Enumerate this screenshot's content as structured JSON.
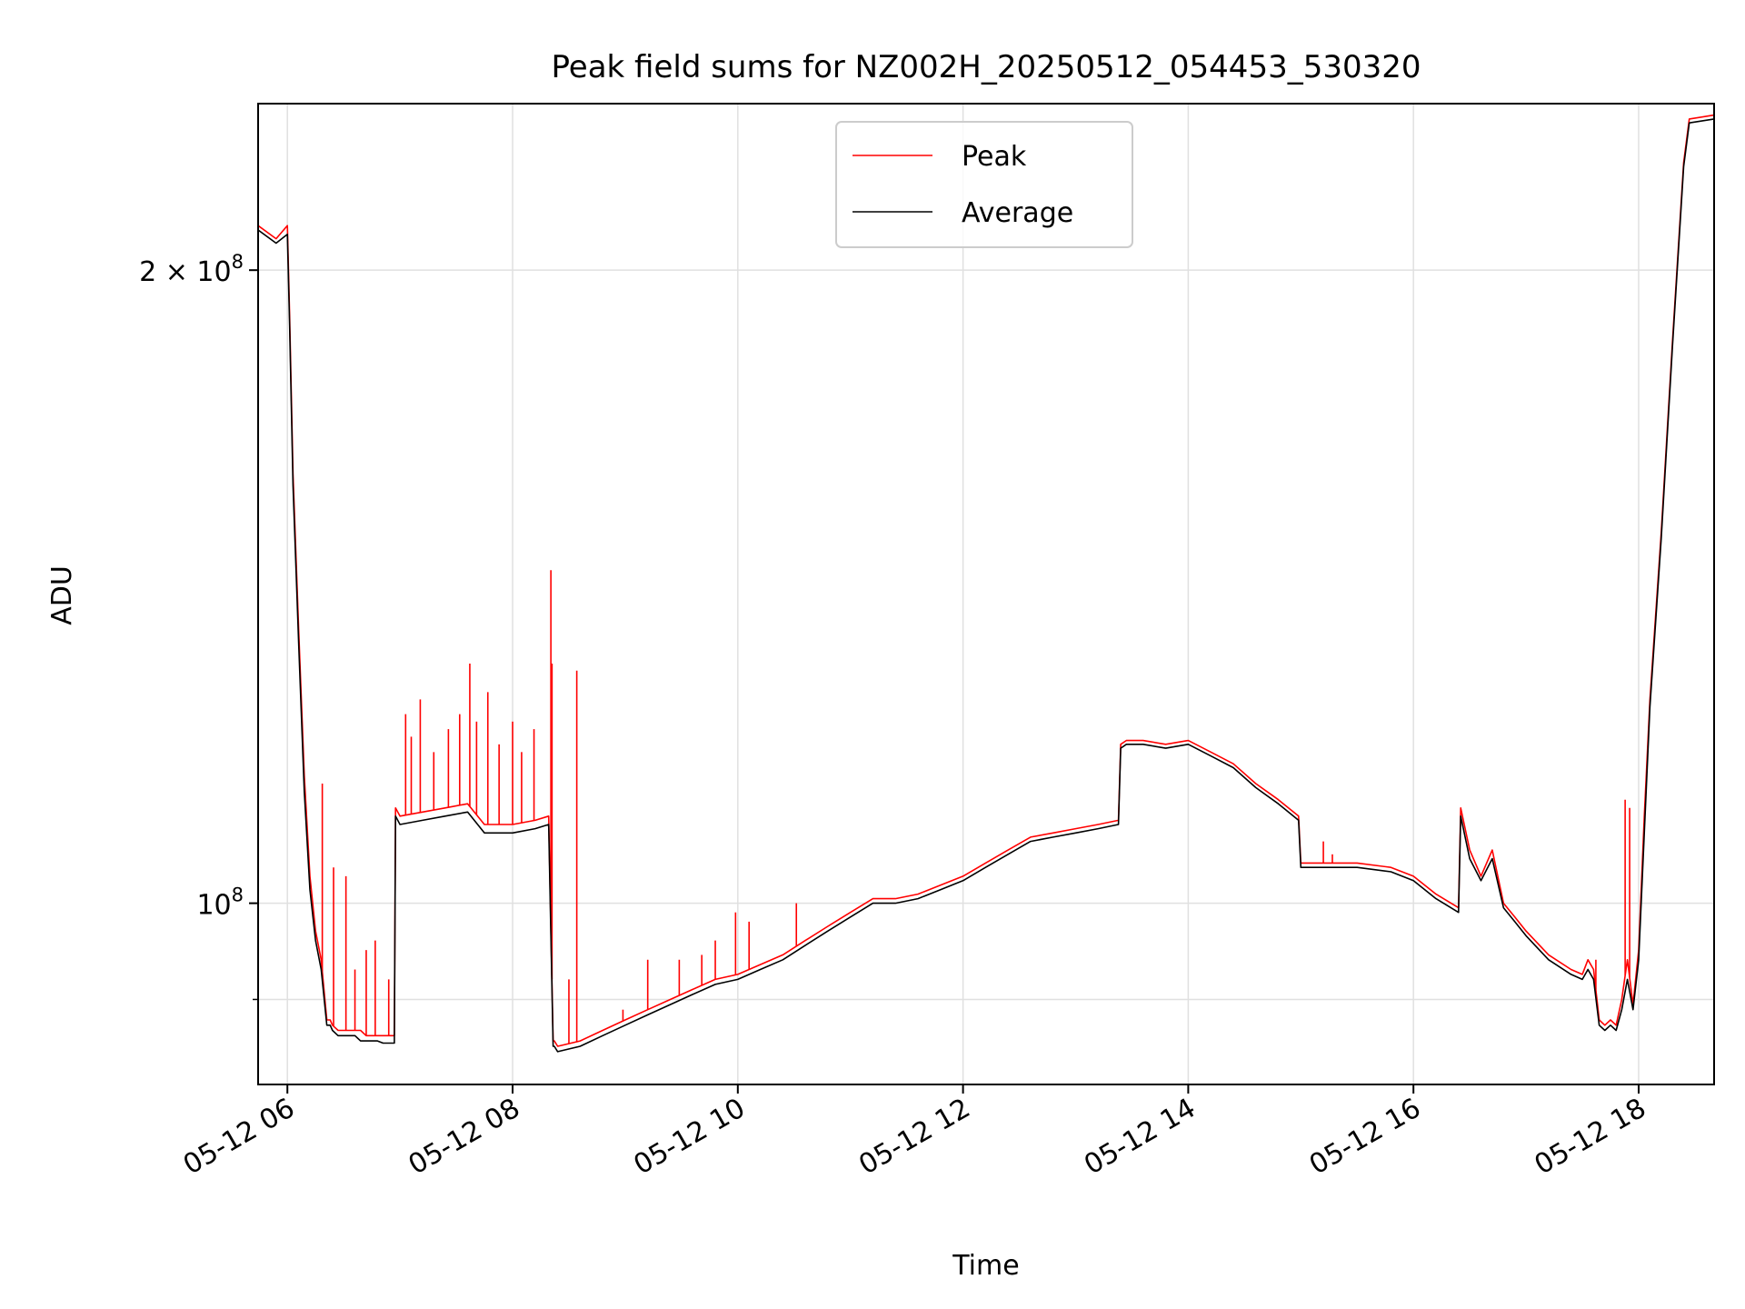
{
  "chart_data": {
    "type": "line",
    "title": "Peak field sums for NZ002H_20250512_054453_530320",
    "xlabel": "Time",
    "ylabel": "ADU",
    "x_unit": "hours on 2025-05-12",
    "xlim": [
      5.74,
      18.67
    ],
    "ylim": [
      82000000,
      240000000
    ],
    "y_scale": "log",
    "grid": true,
    "legend_position": "upper center",
    "x_ticks": [
      {
        "value": 6,
        "label": "05-12 06"
      },
      {
        "value": 8,
        "label": "05-12 08"
      },
      {
        "value": 10,
        "label": "05-12 10"
      },
      {
        "value": 12,
        "label": "05-12 12"
      },
      {
        "value": 14,
        "label": "05-12 14"
      },
      {
        "value": 16,
        "label": "05-12 16"
      },
      {
        "value": 18,
        "label": "05-12 18"
      }
    ],
    "y_ticks": [
      {
        "value": 200000000,
        "label": "2 × 10",
        "exp": "8"
      },
      {
        "value": 100000000,
        "label": "10",
        "exp": "8"
      }
    ],
    "y_minor_ticks": [
      90000000
    ],
    "series": [
      {
        "name": "Peak",
        "color": "#ff0000",
        "x": [
          5.74,
          5.9,
          6.0,
          6.02,
          6.05,
          6.1,
          6.15,
          6.2,
          6.25,
          6.3,
          6.35,
          6.38,
          6.4,
          6.45,
          6.5,
          6.55,
          6.6,
          6.65,
          6.7,
          6.75,
          6.8,
          6.85,
          6.95,
          6.96,
          7.0,
          7.2,
          7.4,
          7.6,
          7.75,
          7.8,
          8.0,
          8.2,
          8.32,
          8.36,
          8.37,
          8.4,
          8.6,
          8.8,
          9.0,
          9.2,
          9.4,
          9.6,
          9.8,
          10.0,
          10.2,
          10.4,
          10.6,
          10.8,
          11.0,
          11.2,
          11.4,
          11.6,
          11.8,
          12.0,
          12.2,
          12.4,
          12.6,
          12.8,
          13.0,
          13.2,
          13.38,
          13.4,
          13.45,
          13.6,
          13.8,
          14.0,
          14.2,
          14.4,
          14.6,
          14.8,
          14.98,
          15.0,
          15.2,
          15.5,
          15.8,
          16.0,
          16.2,
          16.4,
          16.42,
          16.5,
          16.6,
          16.7,
          16.8,
          16.9,
          17.0,
          17.2,
          17.4,
          17.5,
          17.55,
          17.6,
          17.65,
          17.7,
          17.75,
          17.8,
          17.85,
          17.9,
          17.95,
          18.0,
          18.05,
          18.1,
          18.2,
          18.3,
          18.4,
          18.45,
          18.67
        ],
        "y": [
          210000000,
          207000000,
          210000000,
          190000000,
          160000000,
          135000000,
          115000000,
          103000000,
          97000000,
          94000000,
          88000000,
          88000000,
          87500000,
          87000000,
          87000000,
          87000000,
          87000000,
          87000000,
          86500000,
          86500000,
          86500000,
          86500000,
          86500000,
          111000000,
          110000000,
          110500000,
          111000000,
          111500000,
          109000000,
          109000000,
          109000000,
          109500000,
          110000000,
          86000000,
          86000000,
          85500000,
          86000000,
          87000000,
          88000000,
          89000000,
          90000000,
          91000000,
          92000000,
          92500000,
          93500000,
          94500000,
          96000000,
          97500000,
          99000000,
          100500000,
          100500000,
          101000000,
          102000000,
          103000000,
          104500000,
          106000000,
          107500000,
          108000000,
          108500000,
          109000000,
          109500000,
          119000000,
          119500000,
          119500000,
          119000000,
          119500000,
          118000000,
          116500000,
          114000000,
          112000000,
          110000000,
          104500000,
          104500000,
          104500000,
          104000000,
          103000000,
          101000000,
          99500000,
          111000000,
          106000000,
          103000000,
          106000000,
          100000000,
          98500000,
          97000000,
          94500000,
          93000000,
          92500000,
          94000000,
          93000000,
          88000000,
          87500000,
          88000000,
          87500000,
          90000000,
          94000000,
          89500000,
          95000000,
          110000000,
          125000000,
          150000000,
          185000000,
          225000000,
          236000000,
          237000000
        ],
        "spikes": [
          {
            "x": 6.31,
            "y": 114000000
          },
          {
            "x": 6.41,
            "y": 104000000
          },
          {
            "x": 6.52,
            "y": 103000000
          },
          {
            "x": 6.6,
            "y": 93000000
          },
          {
            "x": 6.7,
            "y": 95000000
          },
          {
            "x": 6.78,
            "y": 96000000
          },
          {
            "x": 6.9,
            "y": 92000000
          },
          {
            "x": 7.05,
            "y": 123000000
          },
          {
            "x": 7.1,
            "y": 120000000
          },
          {
            "x": 7.18,
            "y": 125000000
          },
          {
            "x": 7.3,
            "y": 118000000
          },
          {
            "x": 7.43,
            "y": 121000000
          },
          {
            "x": 7.53,
            "y": 123000000
          },
          {
            "x": 7.62,
            "y": 130000000
          },
          {
            "x": 7.68,
            "y": 122000000
          },
          {
            "x": 7.78,
            "y": 126000000
          },
          {
            "x": 7.88,
            "y": 119000000
          },
          {
            "x": 8.0,
            "y": 122000000
          },
          {
            "x": 8.08,
            "y": 118000000
          },
          {
            "x": 8.19,
            "y": 121000000
          },
          {
            "x": 8.34,
            "y": 144000000
          },
          {
            "x": 8.35,
            "y": 130000000
          },
          {
            "x": 8.5,
            "y": 92000000
          },
          {
            "x": 8.57,
            "y": 129000000
          },
          {
            "x": 8.98,
            "y": 89000000
          },
          {
            "x": 9.2,
            "y": 94000000
          },
          {
            "x": 9.48,
            "y": 94000000
          },
          {
            "x": 9.68,
            "y": 94500000
          },
          {
            "x": 9.8,
            "y": 96000000
          },
          {
            "x": 9.98,
            "y": 99000000
          },
          {
            "x": 10.1,
            "y": 98000000
          },
          {
            "x": 10.52,
            "y": 100000000
          },
          {
            "x": 13.4,
            "y": 119000000
          },
          {
            "x": 15.2,
            "y": 107000000
          },
          {
            "x": 15.28,
            "y": 105500000
          },
          {
            "x": 17.62,
            "y": 94000000
          },
          {
            "x": 17.88,
            "y": 112000000
          },
          {
            "x": 17.92,
            "y": 111000000
          }
        ]
      },
      {
        "name": "Average",
        "color": "#000000",
        "x": [
          5.74,
          5.9,
          6.0,
          6.02,
          6.05,
          6.1,
          6.15,
          6.2,
          6.25,
          6.3,
          6.35,
          6.38,
          6.4,
          6.45,
          6.5,
          6.55,
          6.6,
          6.65,
          6.7,
          6.75,
          6.8,
          6.85,
          6.95,
          6.96,
          7.0,
          7.2,
          7.4,
          7.6,
          7.75,
          7.8,
          8.0,
          8.2,
          8.32,
          8.36,
          8.37,
          8.4,
          8.6,
          8.8,
          9.0,
          9.2,
          9.4,
          9.6,
          9.8,
          10.0,
          10.2,
          10.4,
          10.6,
          10.8,
          11.0,
          11.2,
          11.4,
          11.6,
          11.8,
          12.0,
          12.2,
          12.4,
          12.6,
          12.8,
          13.0,
          13.2,
          13.38,
          13.4,
          13.45,
          13.6,
          13.8,
          14.0,
          14.2,
          14.4,
          14.6,
          14.8,
          14.98,
          15.0,
          15.2,
          15.5,
          15.8,
          16.0,
          16.2,
          16.4,
          16.42,
          16.5,
          16.6,
          16.7,
          16.8,
          16.9,
          17.0,
          17.2,
          17.4,
          17.5,
          17.55,
          17.6,
          17.65,
          17.7,
          17.75,
          17.8,
          17.85,
          17.9,
          17.95,
          18.0,
          18.05,
          18.1,
          18.2,
          18.3,
          18.4,
          18.45,
          18.67
        ],
        "y": [
          209000000,
          206000000,
          208000000,
          188000000,
          158000000,
          133000000,
          113000000,
          101500000,
          96000000,
          93000000,
          87500000,
          87500000,
          87000000,
          86500000,
          86500000,
          86500000,
          86500000,
          86000000,
          86000000,
          86000000,
          86000000,
          85800000,
          85800000,
          110000000,
          109000000,
          109500000,
          110000000,
          110500000,
          108000000,
          108000000,
          108000000,
          108500000,
          109000000,
          85500000,
          85500000,
          85000000,
          85500000,
          86500000,
          87500000,
          88500000,
          89500000,
          90500000,
          91500000,
          92000000,
          93000000,
          94000000,
          95500000,
          97000000,
          98500000,
          100000000,
          100000000,
          100500000,
          101500000,
          102500000,
          104000000,
          105500000,
          107000000,
          107500000,
          108000000,
          108500000,
          109000000,
          118500000,
          119000000,
          119000000,
          118500000,
          119000000,
          117500000,
          116000000,
          113500000,
          111500000,
          109500000,
          104000000,
          104000000,
          104000000,
          103500000,
          102500000,
          100500000,
          99000000,
          110000000,
          105000000,
          102500000,
          105000000,
          99500000,
          98000000,
          96500000,
          94000000,
          92500000,
          92000000,
          93000000,
          92000000,
          87500000,
          87000000,
          87500000,
          87000000,
          89000000,
          92000000,
          89000000,
          94000000,
          108000000,
          124000000,
          149000000,
          184000000,
          224000000,
          235000000,
          236000000
        ]
      }
    ]
  }
}
